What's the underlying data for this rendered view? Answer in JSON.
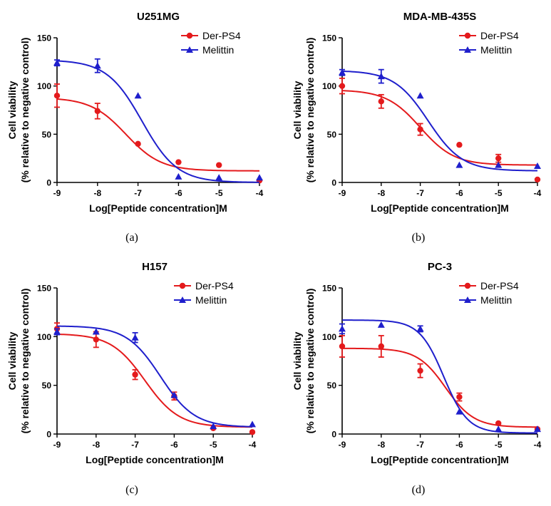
{
  "figure": {
    "panels": [
      {
        "id": "a",
        "caption": "(a)"
      },
      {
        "id": "b",
        "caption": "(b)"
      },
      {
        "id": "c",
        "caption": "(c)"
      },
      {
        "id": "d",
        "caption": "(d)"
      }
    ]
  },
  "colors": {
    "der": "#e41a1c",
    "mel": "#1f1fcc",
    "axis": "#000000"
  },
  "chart_data": [
    {
      "type": "scatter",
      "title": "U251MG",
      "xlabel": "Log[Peptide concentration]M",
      "ylabel_line1": "Cell viability",
      "ylabel_line2": "(% relative to negative control)",
      "xlim": [
        -9,
        -4
      ],
      "ylim": [
        0,
        150
      ],
      "xticks": [
        "-9",
        "-8",
        "-7",
        "-6",
        "-5",
        "-4"
      ],
      "yticks": [
        "0",
        "50",
        "100",
        "150"
      ],
      "legend": [
        "Der-PS4",
        "Melittin"
      ],
      "legend_position": "top-right",
      "series": [
        {
          "name": "Der-PS4",
          "marker": "circle",
          "x": [
            -9,
            -8,
            -7,
            -6,
            -5,
            -4
          ],
          "y": [
            90,
            74,
            40,
            21,
            18,
            2
          ],
          "err": [
            12,
            8,
            1,
            1,
            1,
            1
          ],
          "fit": {
            "bottom": 12,
            "top": 88,
            "logec50": -7.3,
            "hill": 1.0
          }
        },
        {
          "name": "Melittin",
          "marker": "triangle",
          "x": [
            -9,
            -8,
            -7,
            -6,
            -5,
            -4
          ],
          "y": [
            124,
            121,
            90,
            6,
            5,
            5
          ],
          "err": [
            3,
            7,
            1,
            1,
            1,
            1
          ],
          "fit": {
            "bottom": 0,
            "top": 127,
            "logec50": -6.9,
            "hill": 1.0
          }
        }
      ]
    },
    {
      "type": "scatter",
      "title": "MDA-MB-435S",
      "xlabel": "Log[Peptide concentration]M",
      "ylabel_line1": "Cell viability",
      "ylabel_line2": "(% relative to negative control)",
      "xlim": [
        -9,
        -4
      ],
      "ylim": [
        0,
        150
      ],
      "xticks": [
        "-9",
        "-8",
        "-7",
        "-6",
        "-5",
        "-4"
      ],
      "yticks": [
        "0",
        "50",
        "100",
        "150"
      ],
      "legend": [
        "Der-PS4",
        "Melittin"
      ],
      "legend_position": "top-right",
      "series": [
        {
          "name": "Der-PS4",
          "marker": "circle",
          "x": [
            -9,
            -8,
            -7,
            -6,
            -5,
            -4
          ],
          "y": [
            100,
            84,
            55,
            39,
            25,
            3
          ],
          "err": [
            8,
            7,
            6,
            1,
            4,
            1
          ],
          "fit": {
            "bottom": 18,
            "top": 96,
            "logec50": -7.0,
            "hill": 1.0
          }
        },
        {
          "name": "Melittin",
          "marker": "triangle",
          "x": [
            -9,
            -8,
            -7,
            -6,
            -5,
            -4
          ],
          "y": [
            114,
            110,
            90,
            18,
            18,
            17
          ],
          "err": [
            3,
            7,
            1,
            1,
            1,
            1
          ],
          "fit": {
            "bottom": 12,
            "top": 116,
            "logec50": -6.8,
            "hill": 1.0
          }
        }
      ]
    },
    {
      "type": "scatter",
      "title": "H157",
      "xlabel": "Log[Peptide concentration]M",
      "ylabel_line1": "Cell viability",
      "ylabel_line2": "(% relative to negative control)",
      "xlim": [
        -9,
        -4
      ],
      "ylim": [
        0,
        150
      ],
      "xticks": [
        "-9",
        "-8",
        "-7",
        "-6",
        "-5",
        "-4"
      ],
      "yticks": [
        "0",
        "50",
        "100",
        "150"
      ],
      "legend": [
        "Der-PS4",
        "Melittin"
      ],
      "legend_position": "top-right",
      "series": [
        {
          "name": "Der-PS4",
          "marker": "circle",
          "x": [
            -9,
            -8,
            -7,
            -6,
            -5,
            -4
          ],
          "y": [
            108,
            97,
            61,
            39,
            6,
            2
          ],
          "err": [
            6,
            8,
            5,
            4,
            1,
            1
          ],
          "fit": {
            "bottom": 7,
            "top": 103,
            "logec50": -6.75,
            "hill": 1.0
          }
        },
        {
          "name": "Melittin",
          "marker": "triangle",
          "x": [
            -9,
            -8,
            -7,
            -6,
            -5,
            -4
          ],
          "y": [
            105,
            105,
            99,
            40,
            8,
            10
          ],
          "err": [
            3,
            1,
            5,
            1,
            1,
            1
          ],
          "fit": {
            "bottom": 7,
            "top": 111,
            "logec50": -6.35,
            "hill": 1.0
          }
        }
      ]
    },
    {
      "type": "scatter",
      "title": "PC-3",
      "xlabel": "Log[Peptide concentration]M",
      "ylabel_line1": "Cell viability",
      "ylabel_line2": "(% relative to negative control)",
      "xlim": [
        -9,
        -4
      ],
      "ylim": [
        0,
        150
      ],
      "xticks": [
        "-9",
        "-8",
        "-7",
        "-6",
        "-5",
        "-4"
      ],
      "yticks": [
        "0",
        "50",
        "100",
        "150"
      ],
      "legend": [
        "Der-PS4",
        "Melittin"
      ],
      "legend_position": "top-right",
      "series": [
        {
          "name": "Der-PS4",
          "marker": "circle",
          "x": [
            -9,
            -8,
            -7,
            -6,
            -5,
            -4
          ],
          "y": [
            90,
            90,
            65,
            38,
            11,
            5
          ],
          "err": [
            11,
            11,
            7,
            4,
            1,
            1
          ],
          "fit": {
            "bottom": 7,
            "top": 88,
            "logec50": -6.35,
            "hill": 1.2
          }
        },
        {
          "name": "Melittin",
          "marker": "triangle",
          "x": [
            -9,
            -8,
            -7,
            -6,
            -5,
            -4
          ],
          "y": [
            108,
            112,
            108,
            23,
            5,
            5
          ],
          "err": [
            5,
            1,
            3,
            1,
            1,
            1
          ],
          "fit": {
            "bottom": 1,
            "top": 117,
            "logec50": -6.4,
            "hill": 1.4
          }
        }
      ]
    }
  ]
}
